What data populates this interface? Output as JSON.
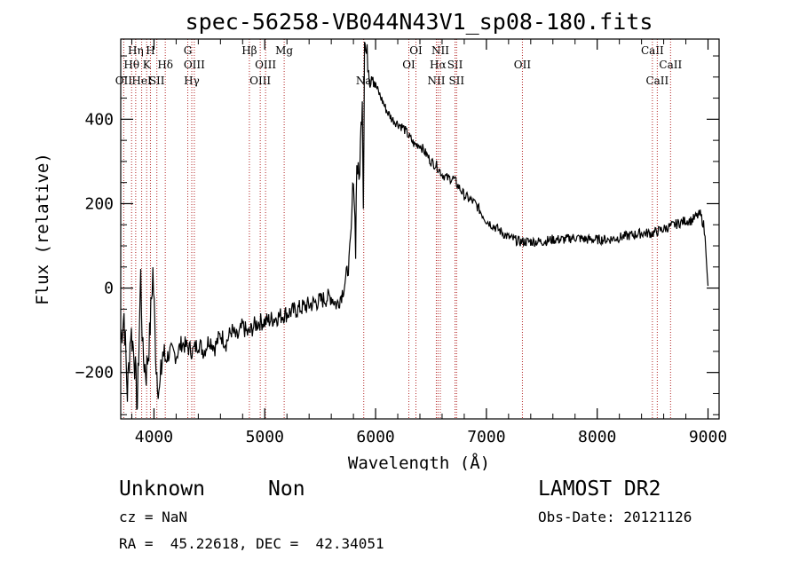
{
  "chart_data": {
    "type": "line",
    "title": "spec-56258-VB044N43V1_sp08-180.fits",
    "xlabel": "Wavelength (Å)",
    "ylabel": "Flux (relative)",
    "xlim": [
      3700,
      9100
    ],
    "ylim": [
      -310,
      590
    ],
    "x_ticks": [
      4000,
      5000,
      6000,
      7000,
      8000,
      9000
    ],
    "y_ticks": [
      -200,
      0,
      200,
      400
    ],
    "grid": false,
    "series": [
      {
        "x": [
          3700,
          3730,
          3760,
          3790,
          3820,
          3850,
          3880,
          3900,
          3930,
          3960,
          3990,
          4020,
          4050,
          4080,
          4100,
          4150,
          4200,
          4250,
          4300,
          4350,
          4400,
          4450,
          4500,
          4550,
          4600,
          4650,
          4700,
          4750,
          4800,
          4850,
          4900,
          4950,
          5000,
          5100,
          5200,
          5300,
          5400,
          5500,
          5600,
          5650,
          5700,
          5730,
          5760,
          5780,
          5800,
          5820,
          5830,
          5850,
          5870,
          5880,
          5890,
          5900,
          5910,
          5930,
          5950,
          5970,
          6000,
          6050,
          6100,
          6150,
          6200,
          6250,
          6300,
          6350,
          6400,
          6450,
          6500,
          6550,
          6600,
          6650,
          6700,
          6750,
          6800,
          6850,
          6900,
          6950,
          7000,
          7050,
          7100,
          7150,
          7200,
          7300,
          7400,
          7500,
          7600,
          7700,
          7800,
          7900,
          8000,
          8100,
          8200,
          8300,
          8400,
          8500,
          8600,
          8700,
          8800,
          8850,
          8900,
          8930,
          8960,
          8980,
          9000
        ],
        "y": [
          -120,
          -60,
          -250,
          -100,
          -150,
          -280,
          30,
          -160,
          -200,
          -120,
          40,
          -180,
          -250,
          -150,
          -170,
          -150,
          -160,
          -130,
          -140,
          -150,
          -130,
          -150,
          -120,
          -140,
          -110,
          -130,
          -100,
          -120,
          -90,
          -110,
          -90,
          -80,
          -80,
          -70,
          -60,
          -50,
          -40,
          -30,
          -20,
          -40,
          -10,
          20,
          60,
          130,
          280,
          100,
          300,
          250,
          380,
          460,
          200,
          600,
          560,
          540,
          500,
          520,
          480,
          450,
          420,
          400,
          390,
          380,
          360,
          340,
          340,
          320,
          300,
          290,
          270,
          260,
          260,
          240,
          220,
          210,
          200,
          180,
          160,
          150,
          140,
          130,
          120,
          110,
          110,
          110,
          115,
          115,
          120,
          115,
          115,
          115,
          120,
          125,
          130,
          130,
          140,
          150,
          160,
          160,
          170,
          175,
          150,
          100,
          5
        ]
      }
    ],
    "line_markers": [
      {
        "wavelength": 3727,
        "label": "OII",
        "row": 3
      },
      {
        "wavelength": 3798,
        "label": "Hθ",
        "row": 1
      },
      {
        "wavelength": 3835,
        "label": "Hη",
        "row": 0
      },
      {
        "wavelength": 3889,
        "label": "HeI",
        "row": 3
      },
      {
        "wavelength": 3934,
        "label": "K",
        "row": 1
      },
      {
        "wavelength": 3968,
        "label": "H",
        "row": 0
      },
      {
        "wavelength": 4026,
        "label": "SII",
        "row": 3
      },
      {
        "wavelength": 4102,
        "label": "Hδ",
        "row": 1
      },
      {
        "wavelength": 4305,
        "label": "G",
        "row": 0
      },
      {
        "wavelength": 4341,
        "label": "Hγ",
        "row": 3
      },
      {
        "wavelength": 4364,
        "label": "OIII",
        "row": 1
      },
      {
        "wavelength": 4861,
        "label": "Hβ",
        "row": 0
      },
      {
        "wavelength": 4959,
        "label": "OIII",
        "row": 3
      },
      {
        "wavelength": 5007,
        "label": "OIII",
        "row": 1
      },
      {
        "wavelength": 5175,
        "label": "Mg",
        "row": 0
      },
      {
        "wavelength": 5893,
        "label": "Na",
        "row": 3
      },
      {
        "wavelength": 6300,
        "label": "OI",
        "row": 1
      },
      {
        "wavelength": 6364,
        "label": "OI",
        "row": 0
      },
      {
        "wavelength": 6548,
        "label": "NII",
        "row": 3
      },
      {
        "wavelength": 6563,
        "label": "Hα",
        "row": 1
      },
      {
        "wavelength": 6584,
        "label": "NII",
        "row": 0
      },
      {
        "wavelength": 6717,
        "label": "SII",
        "row": 1
      },
      {
        "wavelength": 6731,
        "label": "SII",
        "row": 3
      },
      {
        "wavelength": 7325,
        "label": "OII",
        "row": 1
      },
      {
        "wavelength": 8498,
        "label": "CaII",
        "row": 0
      },
      {
        "wavelength": 8542,
        "label": "CaII",
        "row": 3
      },
      {
        "wavelength": 8662,
        "label": "CaII",
        "row": 1
      }
    ]
  },
  "info": {
    "classification": "Unknown",
    "subclass": "Non",
    "survey": "LAMOST DR2",
    "redshift": "cz = NaN",
    "obs_date": "Obs-Date: 20121126",
    "coords": "RA =  45.22618, DEC =  42.34051"
  },
  "colors": {
    "axis": "#000000",
    "spectrum": "#000000",
    "marker_line": "#b22222"
  }
}
